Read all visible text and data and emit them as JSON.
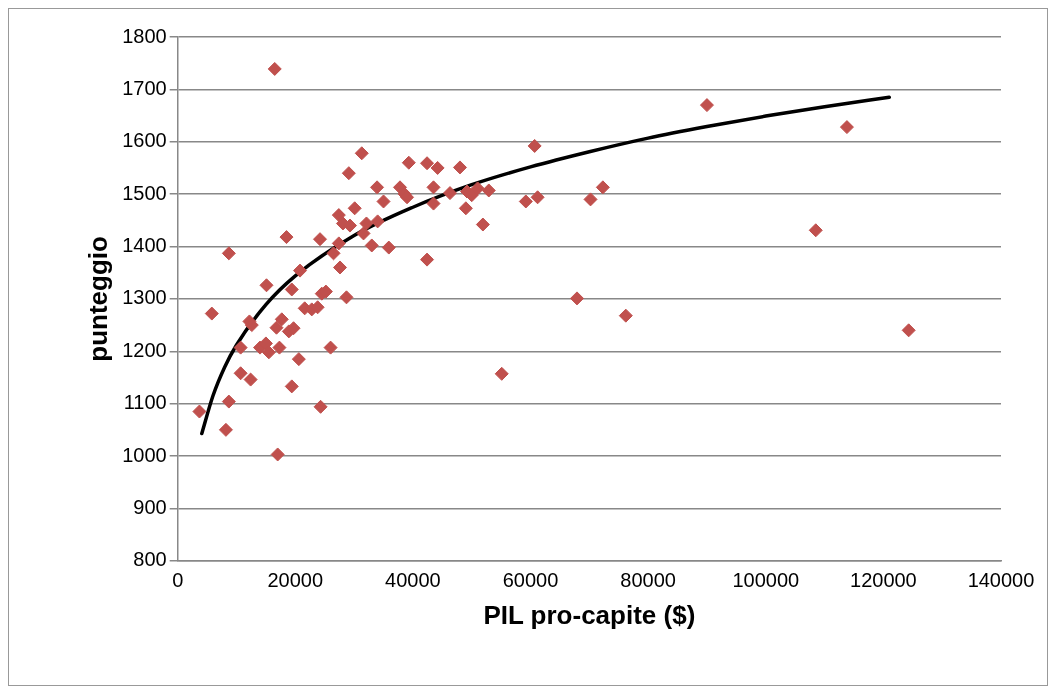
{
  "chart_data": {
    "type": "scatter",
    "xlabel": "PIL pro-capite ($)",
    "ylabel": "punteggio",
    "xlim": [
      0,
      140000
    ],
    "xticks": [
      0,
      20000,
      40000,
      60000,
      80000,
      100000,
      120000,
      140000
    ],
    "ylim": [
      800,
      1800
    ],
    "yticks": [
      800,
      900,
      1000,
      1100,
      1200,
      1300,
      1400,
      1500,
      1600,
      1700,
      1800
    ],
    "grid": "y",
    "legend": false,
    "marker": "diamond",
    "series": [
      {
        "type": "scatter",
        "color": "#c0504d",
        "x": [
          3700,
          5800,
          8700,
          8700,
          8200,
          10700,
          10700,
          12200,
          12400,
          12600,
          14000,
          15000,
          15100,
          15500,
          16500,
          16800,
          17000,
          17300,
          17700,
          18500,
          18900,
          19400,
          19400,
          19700,
          20600,
          20800,
          21600,
          22800,
          23800,
          24200,
          24300,
          24500,
          25200,
          26000,
          26500,
          27400,
          27600,
          27400,
          28100,
          28700,
          29100,
          29300,
          30100,
          31300,
          31600,
          32100,
          33000,
          33900,
          34000,
          35000,
          35900,
          37800,
          38600,
          39000,
          39300,
          42400,
          42400,
          43500,
          43500,
          44200,
          46300,
          48000,
          49200,
          49000,
          50000,
          51000,
          51900,
          52900,
          55100,
          59200,
          60700,
          61200,
          67900,
          70200,
          72300,
          76200,
          90000,
          108500,
          113800,
          124300
        ],
        "values": [
          1085,
          1272,
          1387,
          1104,
          1050,
          1207,
          1158,
          1257,
          1146,
          1250,
          1207,
          1215,
          1326,
          1198,
          1739,
          1245,
          1003,
          1207,
          1261,
          1418,
          1238,
          1318,
          1133,
          1244,
          1185,
          1354,
          1282,
          1280,
          1284,
          1414,
          1094,
          1310,
          1314,
          1207,
          1387,
          1406,
          1360,
          1460,
          1444,
          1303,
          1540,
          1440,
          1473,
          1578,
          1425,
          1444,
          1402,
          1513,
          1448,
          1486,
          1398,
          1513,
          1500,
          1494,
          1560,
          1559,
          1375,
          1513,
          1482,
          1550,
          1502,
          1551,
          1505,
          1473,
          1498,
          1511,
          1442,
          1507,
          1157,
          1486,
          1592,
          1494,
          1301,
          1490,
          1513,
          1268,
          1670,
          1431,
          1628,
          1240
        ]
      },
      {
        "type": "line",
        "color": "#000000",
        "marker": "none",
        "x": [
          4100,
          6000,
          8000,
          10000,
          15000,
          20000,
          30000,
          40000,
          50000,
          60000,
          70000,
          80000,
          90000,
          100000,
          110000,
          121000
        ],
        "values": [
          1043,
          1115,
          1170,
          1212,
          1289,
          1344,
          1421,
          1475,
          1518,
          1552,
          1581,
          1607,
          1629,
          1649,
          1667,
          1685
        ]
      }
    ]
  }
}
